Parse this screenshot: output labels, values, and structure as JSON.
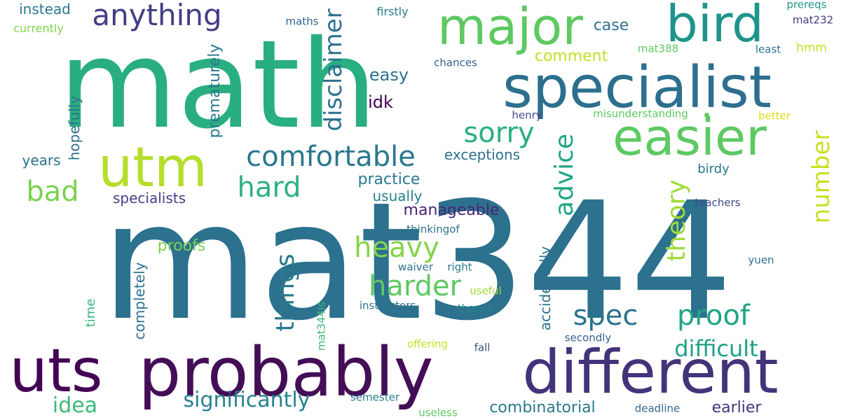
{
  "words": [
    {
      "text": "mat344",
      "color": "#2c718e",
      "orient": "h"
    },
    {
      "text": "math",
      "color": "#29af7f",
      "orient": "h"
    },
    {
      "text": "specialist",
      "color": "#2d6f8e",
      "orient": "h"
    },
    {
      "text": "probably",
      "color": "#440e56",
      "orient": "h"
    },
    {
      "text": "different",
      "color": "#44337b",
      "orient": "h"
    },
    {
      "text": "major",
      "color": "#5ec962",
      "orient": "h"
    },
    {
      "text": "bird",
      "color": "#1f948b",
      "orient": "h"
    },
    {
      "text": "utm",
      "color": "#b5de2b",
      "orient": "h"
    },
    {
      "text": "easier",
      "color": "#5ec962",
      "orient": "h"
    },
    {
      "text": "uts",
      "color": "#440154",
      "orient": "h"
    },
    {
      "text": "anything",
      "color": "#433e85",
      "orient": "h"
    },
    {
      "text": "comfortable",
      "color": "#2a788e",
      "orient": "h"
    },
    {
      "text": "hard",
      "color": "#2db27d",
      "orient": "h"
    },
    {
      "text": "bad",
      "color": "#7ad151",
      "orient": "h"
    },
    {
      "text": "sorry",
      "color": "#29af7f",
      "orient": "h"
    },
    {
      "text": "heavy",
      "color": "#84d44b",
      "orient": "h"
    },
    {
      "text": "harder",
      "color": "#5ec962",
      "orient": "h"
    },
    {
      "text": "spec",
      "color": "#2c728e",
      "orient": "h"
    },
    {
      "text": "proof",
      "color": "#20a486",
      "orient": "h"
    },
    {
      "text": "difficult",
      "color": "#1fa287",
      "orient": "h"
    },
    {
      "text": "significantly",
      "color": "#26828e",
      "orient": "h"
    },
    {
      "text": "idea",
      "color": "#3bbb75",
      "orient": "h"
    },
    {
      "text": "combinatorial",
      "color": "#2a778e",
      "orient": "h"
    },
    {
      "text": "earlier",
      "color": "#46337e",
      "orient": "h"
    },
    {
      "text": "easy",
      "color": "#2c728e",
      "orient": "h"
    },
    {
      "text": "idk",
      "color": "#440154",
      "orient": "h"
    },
    {
      "text": "case",
      "color": "#2d708e",
      "orient": "h"
    },
    {
      "text": "comment",
      "color": "#c2df23",
      "orient": "h"
    },
    {
      "text": "practice",
      "color": "#2a788e",
      "orient": "h"
    },
    {
      "text": "usually",
      "color": "#26828e",
      "orient": "h"
    },
    {
      "text": "manageable",
      "color": "#482576",
      "orient": "h"
    },
    {
      "text": "exceptions",
      "color": "#2d708e",
      "orient": "h"
    },
    {
      "text": "specialists",
      "color": "#423f85",
      "orient": "h"
    },
    {
      "text": "proofs",
      "color": "#7ad151",
      "orient": "h"
    },
    {
      "text": "years",
      "color": "#2c728e",
      "orient": "h"
    },
    {
      "text": "instead",
      "color": "#2a788e",
      "orient": "h"
    },
    {
      "text": "currently",
      "color": "#84d44b",
      "orient": "h"
    },
    {
      "text": "firstly",
      "color": "#287d8e",
      "orient": "h"
    },
    {
      "text": "maths",
      "color": "#31668e",
      "orient": "h"
    },
    {
      "text": "chances",
      "color": "#355f8d",
      "orient": "h"
    },
    {
      "text": "henry",
      "color": "#3e4a89",
      "orient": "h"
    },
    {
      "text": "misunderstanding",
      "color": "#5ec962",
      "orient": "h"
    },
    {
      "text": "mat388",
      "color": "#5ec962",
      "orient": "h"
    },
    {
      "text": "least",
      "color": "#2d708e",
      "orient": "h"
    },
    {
      "text": "hmm",
      "color": "#c2df23",
      "orient": "h"
    },
    {
      "text": "prereqs",
      "color": "#1f968b",
      "orient": "h"
    },
    {
      "text": "mat232",
      "color": "#433e85",
      "orient": "h"
    },
    {
      "text": "better",
      "color": "#d8e219",
      "orient": "h"
    },
    {
      "text": "birdy",
      "color": "#2a778e",
      "orient": "h"
    },
    {
      "text": "teachers",
      "color": "#3e4989",
      "orient": "h"
    },
    {
      "text": "thinkingof",
      "color": "#2c728e",
      "orient": "h"
    },
    {
      "text": "waiver",
      "color": "#2d708e",
      "orient": "h"
    },
    {
      "text": "right",
      "color": "#2a788e",
      "orient": "h"
    },
    {
      "text": "useful",
      "color": "#a2da37",
      "orient": "h"
    },
    {
      "text": "instructors",
      "color": "#2c728e",
      "orient": "h"
    },
    {
      "text": "thanks",
      "color": "#26828e",
      "orient": "h"
    },
    {
      "text": "yuen",
      "color": "#2d708e",
      "orient": "h"
    },
    {
      "text": "offering",
      "color": "#c2df23",
      "orient": "h"
    },
    {
      "text": "fall",
      "color": "#3b528b",
      "orient": "h"
    },
    {
      "text": "secondly",
      "color": "#355f8d",
      "orient": "h"
    },
    {
      "text": "semester",
      "color": "#2a788e",
      "orient": "h"
    },
    {
      "text": "useless",
      "color": "#5ec962",
      "orient": "h"
    },
    {
      "text": "deadline",
      "color": "#31668e",
      "orient": "h"
    },
    {
      "text": "disclaimer",
      "color": "#2d708e",
      "orient": "v"
    },
    {
      "text": "things",
      "color": "#29798e",
      "orient": "v"
    },
    {
      "text": "advice",
      "color": "#20a486",
      "orient": "v"
    },
    {
      "text": "theory",
      "color": "#9fda3a",
      "orient": "v"
    },
    {
      "text": "number",
      "color": "#c8e020",
      "orient": "v"
    },
    {
      "text": "prematurely",
      "color": "#2a788e",
      "orient": "v"
    },
    {
      "text": "hopefully",
      "color": "#2c728e",
      "orient": "v"
    },
    {
      "text": "completely",
      "color": "#2d708e",
      "orient": "v"
    },
    {
      "text": "time",
      "color": "#34b679",
      "orient": "v"
    },
    {
      "text": "accidentally",
      "color": "#2c728e",
      "orient": "v"
    },
    {
      "text": "mat344is",
      "color": "#3bbb75",
      "orient": "v"
    }
  ],
  "dot_color": "#5ec962"
}
